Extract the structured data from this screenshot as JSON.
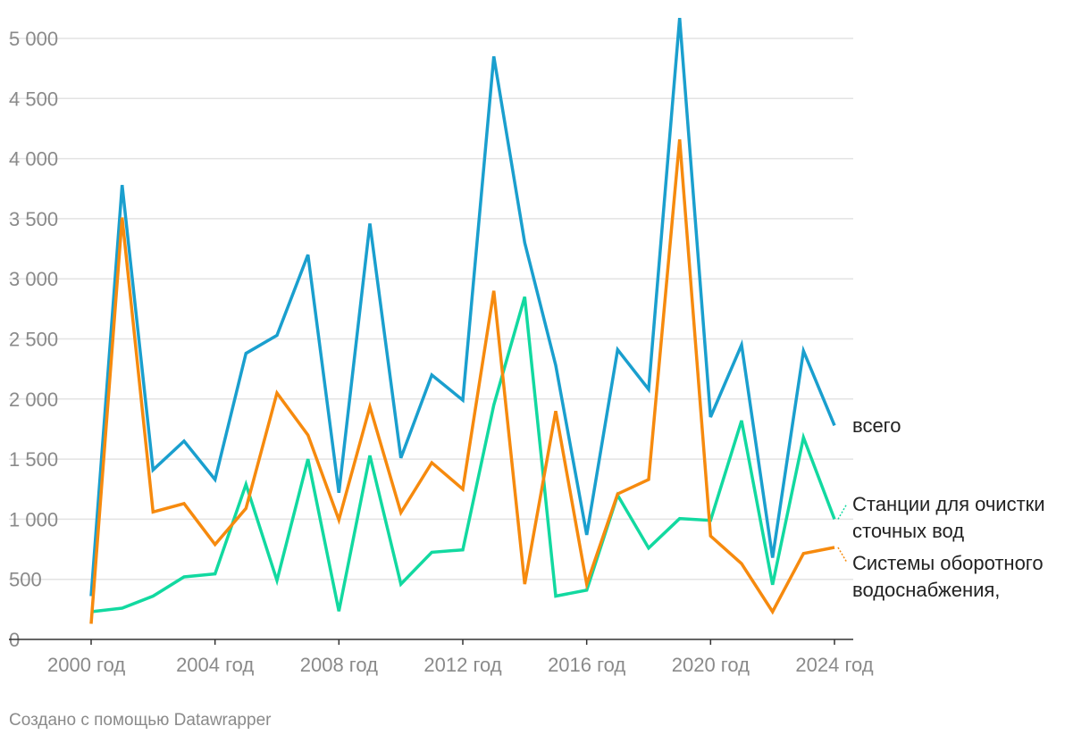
{
  "chart_data": {
    "type": "line",
    "title": "",
    "xlabel": "",
    "ylabel": "",
    "x": [
      2000,
      2001,
      2002,
      2003,
      2004,
      2005,
      2006,
      2007,
      2008,
      2009,
      2010,
      2011,
      2012,
      2013,
      2014,
      2015,
      2016,
      2017,
      2018,
      2019,
      2020,
      2021,
      2022,
      2023,
      2024
    ],
    "x_ticks": [
      2000,
      2004,
      2008,
      2012,
      2016,
      2020,
      2024
    ],
    "x_tick_labels": [
      "2000 год",
      "2004 год",
      "2008 год",
      "2012 год",
      "2016 год",
      "2020 год",
      "2024 год"
    ],
    "y_ticks": [
      0,
      500,
      1000,
      1500,
      2000,
      2500,
      3000,
      3500,
      4000,
      4500,
      5000
    ],
    "y_tick_labels": [
      "0",
      "500",
      "1 000",
      "1 500",
      "2 000",
      "2 500",
      "3 000",
      "3 500",
      "4 000",
      "4 500",
      "5 000"
    ],
    "ylim": [
      0,
      5000
    ],
    "grid": true,
    "legend": "direct labels at right end of lines",
    "series": [
      {
        "name": "всего",
        "label_lines": [
          "всего"
        ],
        "color": "#1a9fce",
        "values": [
          360,
          3780,
          1410,
          1650,
          1330,
          2380,
          2530,
          3200,
          1220,
          3460,
          1510,
          2200,
          1990,
          4850,
          3300,
          2280,
          870,
          2410,
          2080,
          5170,
          1850,
          2450,
          680,
          2400,
          1780
        ]
      },
      {
        "name": "Станции для очистки сточных вод",
        "label_lines": [
          "Станции для очистки",
          "сточных вод"
        ],
        "color": "#12d9a0",
        "values": [
          230,
          260,
          360,
          520,
          545,
          1290,
          490,
          1500,
          235,
          1530,
          460,
          725,
          745,
          1950,
          2850,
          360,
          410,
          1200,
          760,
          1005,
          990,
          1820,
          455,
          1680,
          1000
        ]
      },
      {
        "name": "Системы оборотного водоснабжения,",
        "label_lines": [
          "Системы оборотного",
          "водоснабжения,"
        ],
        "color": "#f68a0e",
        "values": [
          130,
          3510,
          1060,
          1130,
          790,
          1090,
          2050,
          1700,
          995,
          1935,
          1055,
          1470,
          1250,
          2900,
          460,
          1900,
          460,
          1210,
          1330,
          4160,
          860,
          630,
          230,
          715,
          765
        ]
      }
    ]
  },
  "footer": {
    "credit": "Создано с помощью Datawrapper"
  }
}
